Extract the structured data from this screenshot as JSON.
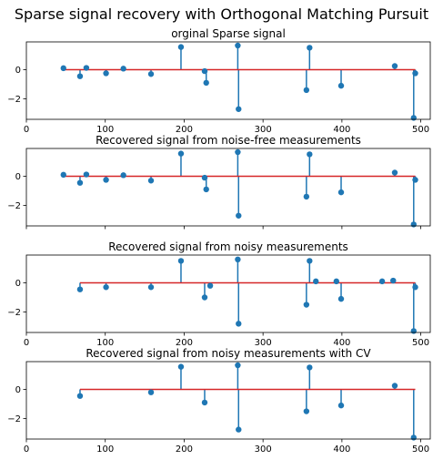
{
  "figure_title": "Sparse signal recovery with Orthogonal Matching Pursuit",
  "colors": {
    "stem": "#1f77b4",
    "baseline": "#d62728"
  },
  "chart_data": [
    {
      "type": "stem",
      "title": "orginal Sparse signal",
      "xlim": [
        0,
        512
      ],
      "ylim": [
        -3.4,
        1.9
      ],
      "xticks": [
        0,
        100,
        200,
        300,
        400,
        500
      ],
      "yticks": [
        -2,
        0
      ],
      "xtick_labels": [
        "0",
        "100",
        "200",
        "300",
        "400",
        "500"
      ],
      "ytick_labels": [
        "−2",
        "0"
      ],
      "baseline": [
        47,
        493
      ],
      "x": [
        47,
        68,
        76,
        101,
        123,
        158,
        196,
        226,
        228,
        268,
        269,
        355,
        359,
        399,
        467,
        491,
        493
      ],
      "y": [
        0.1,
        -0.45,
        0.12,
        -0.25,
        0.07,
        -0.3,
        1.55,
        -0.1,
        -0.9,
        1.65,
        -2.7,
        -1.4,
        1.5,
        -1.1,
        0.25,
        -3.3,
        -0.25
      ]
    },
    {
      "type": "stem",
      "title": "Recovered signal from noise-free measurements",
      "xlim": [
        0,
        512
      ],
      "ylim": [
        -3.4,
        1.9
      ],
      "xticks": [
        0,
        100,
        200,
        300,
        400,
        500
      ],
      "yticks": [
        -2,
        0
      ],
      "xtick_labels": [],
      "ytick_labels": [
        "−2",
        "0"
      ],
      "baseline": [
        47,
        493
      ],
      "x": [
        47,
        68,
        76,
        101,
        123,
        158,
        196,
        226,
        228,
        268,
        269,
        355,
        359,
        399,
        467,
        491,
        493
      ],
      "y": [
        0.1,
        -0.45,
        0.12,
        -0.25,
        0.07,
        -0.3,
        1.55,
        -0.1,
        -0.9,
        1.65,
        -2.7,
        -1.4,
        1.5,
        -1.1,
        0.25,
        -3.3,
        -0.25
      ]
    },
    {
      "type": "stem",
      "title": "Recovered signal from noisy measurements",
      "xlim": [
        0,
        512
      ],
      "ylim": [
        -3.4,
        1.9
      ],
      "xticks": [
        0,
        100,
        200,
        300,
        400,
        500
      ],
      "yticks": [
        -2,
        0
      ],
      "xtick_labels": [
        "0",
        "100",
        "200",
        "300",
        "400",
        "500"
      ],
      "ytick_labels": [
        "−2",
        "0"
      ],
      "baseline": [
        68,
        493
      ],
      "x": [
        68,
        101,
        158,
        196,
        226,
        233,
        268,
        269,
        355,
        359,
        367,
        393,
        399,
        451,
        465,
        491,
        493
      ],
      "y": [
        -0.45,
        -0.3,
        -0.3,
        1.5,
        -1.0,
        -0.2,
        1.6,
        -2.8,
        -1.5,
        1.5,
        0.1,
        0.1,
        -1.1,
        0.1,
        0.15,
        -3.3,
        -0.3
      ]
    },
    {
      "type": "stem",
      "title": "Recovered signal from noisy measurements with CV",
      "xlim": [
        0,
        512
      ],
      "ylim": [
        -3.4,
        1.9
      ],
      "xticks": [
        0,
        100,
        200,
        300,
        400,
        500
      ],
      "yticks": [
        -2,
        0
      ],
      "xtick_labels": [
        "0",
        "100",
        "200",
        "300",
        "400",
        "500"
      ],
      "ytick_labels": [
        "−2",
        "0"
      ],
      "baseline": [
        68,
        493
      ],
      "x": [
        68,
        158,
        196,
        226,
        268,
        269,
        355,
        359,
        399,
        467,
        491
      ],
      "y": [
        -0.45,
        -0.2,
        1.55,
        -0.9,
        1.65,
        -2.75,
        -1.5,
        1.5,
        -1.1,
        0.25,
        -3.3
      ]
    }
  ]
}
